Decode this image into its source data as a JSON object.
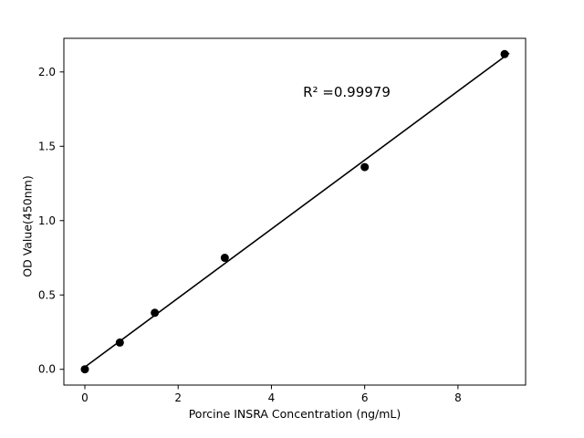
{
  "chart_data": {
    "type": "scatter",
    "title": "",
    "xlabel": "Porcine INSRA Concentration (ng/mL)",
    "ylabel": "OD Value(450nm)",
    "annotation": "R² =0.99979",
    "x": [
      0,
      0.75,
      1.5,
      3,
      6,
      9
    ],
    "y": [
      0.0,
      0.18,
      0.38,
      0.75,
      1.36,
      2.12
    ],
    "x_ticks": [
      0,
      2,
      4,
      6,
      8
    ],
    "x_tick_labels": [
      "0",
      "2",
      "4",
      "6",
      "8"
    ],
    "y_ticks": [
      0.0,
      0.5,
      1.0,
      1.5,
      2.0
    ],
    "y_tick_labels": [
      "0.0",
      "0.5",
      "1.0",
      "1.5",
      "2.0"
    ],
    "xlim": [
      -0.45,
      9.45
    ],
    "ylim": [
      -0.106,
      2.226
    ],
    "fit_line": {
      "type": "linear_regression",
      "x_start": 0,
      "x_end": 9.1
    },
    "legend": "none",
    "grid": false,
    "marker_color": "#000000",
    "line_color": "#000000",
    "background": "#ffffff"
  }
}
